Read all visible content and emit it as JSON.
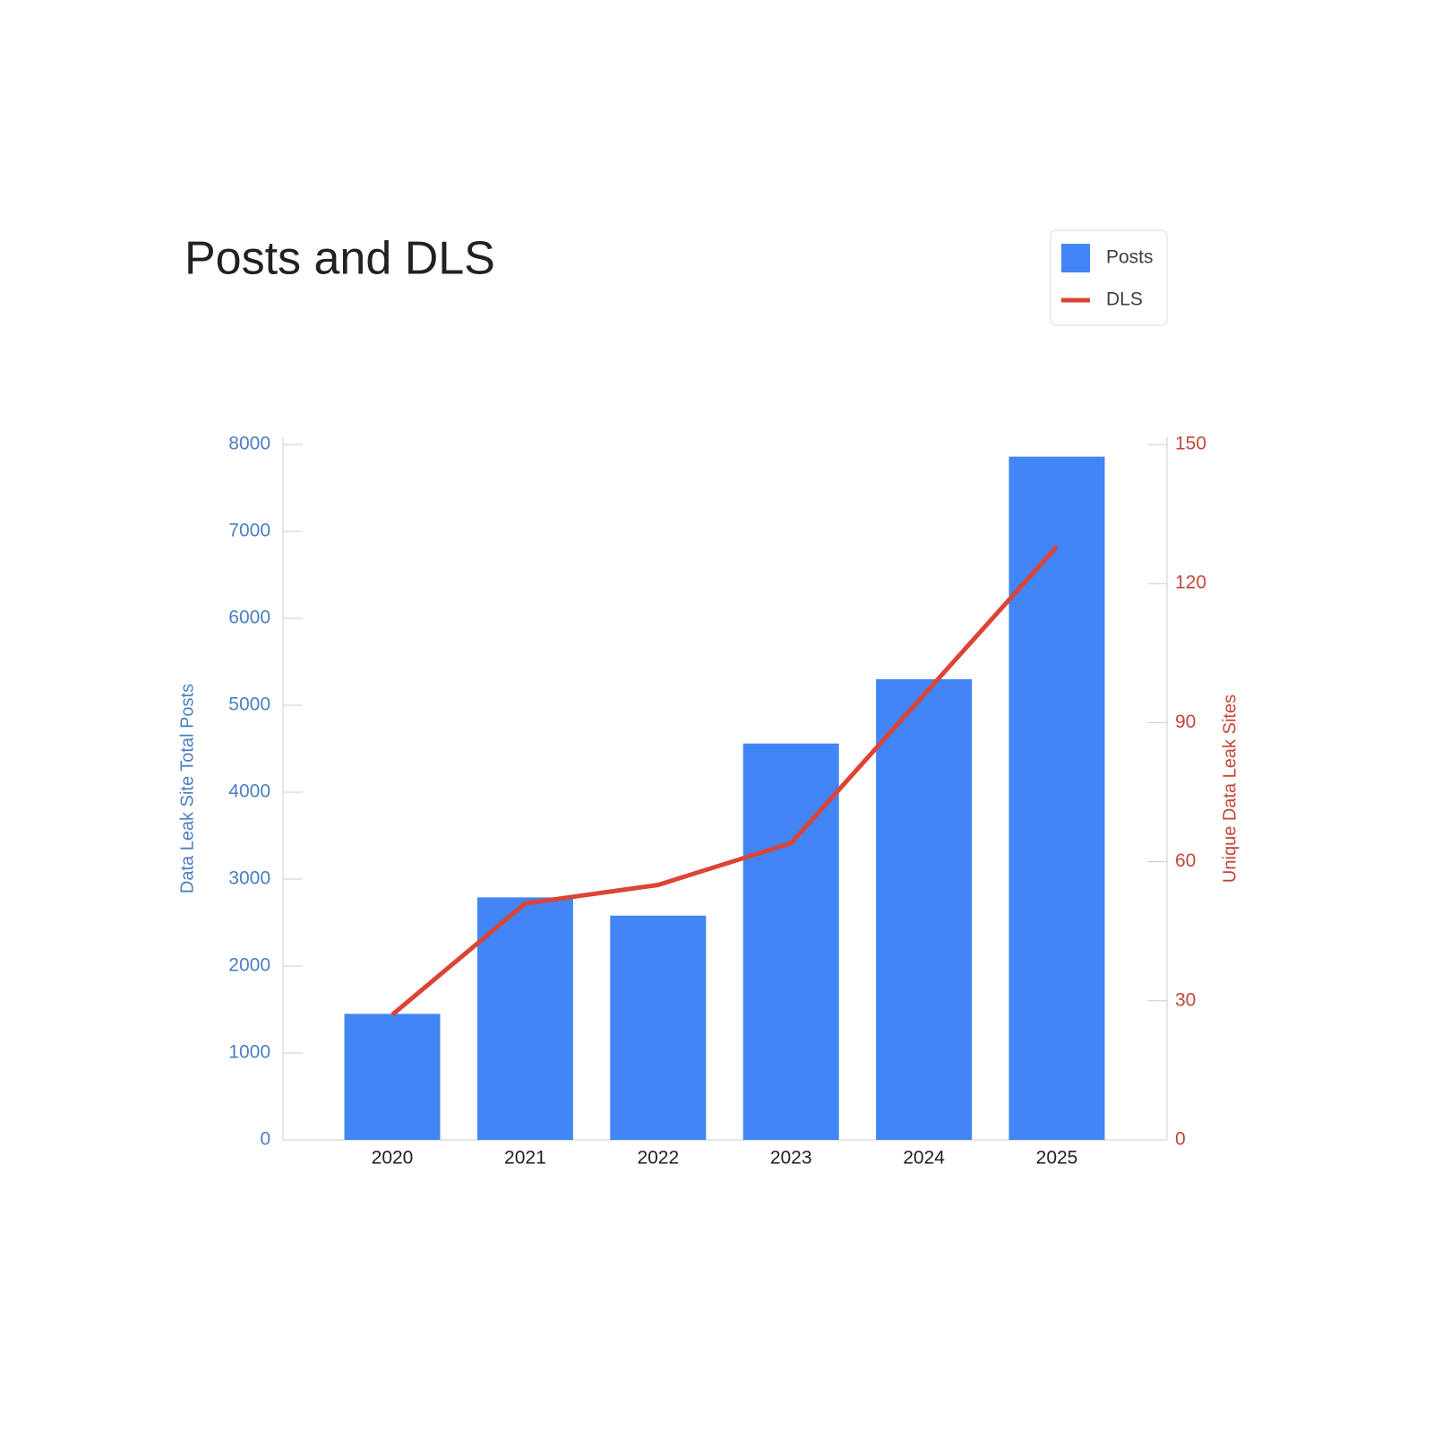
{
  "chart_data": {
    "type": "bar-line",
    "title": "Posts and DLS",
    "categories": [
      "2020",
      "2021",
      "2022",
      "2023",
      "2024",
      "2025"
    ],
    "series": [
      {
        "name": "Posts",
        "type": "bar",
        "color": "#4285f4",
        "values": [
          1450,
          2790,
          2580,
          4560,
          5300,
          7860
        ]
      },
      {
        "name": "DLS",
        "type": "line",
        "axis": "y2",
        "color": "#db4437",
        "values": [
          27,
          51,
          55,
          64,
          96,
          128
        ]
      }
    ],
    "ylabel": "Data Leak Site Total Posts",
    "y2label": "Unique Data Leak Sites",
    "ylim": [
      0,
      8000
    ],
    "yticks": [
      0,
      1000,
      2000,
      3000,
      4000,
      5000,
      6000,
      7000,
      8000
    ],
    "y2lim": [
      0,
      150
    ],
    "y2ticks": [
      0,
      30,
      60,
      90,
      120,
      150
    ]
  }
}
